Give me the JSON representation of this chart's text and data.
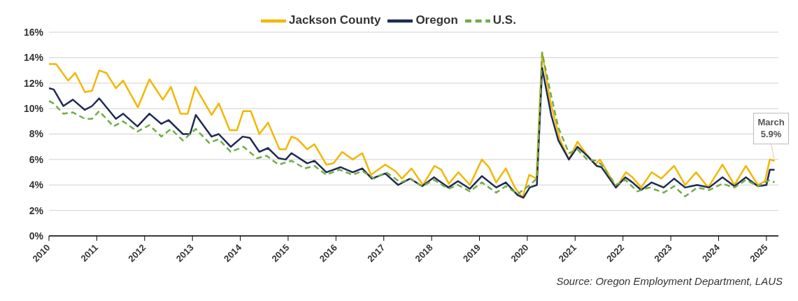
{
  "chart_data": {
    "type": "line",
    "xlim": [
      2010,
      2025.25
    ],
    "xticks": [
      2010,
      2011,
      2012,
      2013,
      2014,
      2015,
      2016,
      2017,
      2018,
      2019,
      2020,
      2021,
      2022,
      2023,
      2024,
      2025
    ],
    "ylim": [
      0,
      16
    ],
    "yticks": [
      {
        "value": 0,
        "label": "0%"
      },
      {
        "value": 2,
        "label": "2%"
      },
      {
        "value": 4,
        "label": "4%"
      },
      {
        "value": 6,
        "label": "6%"
      },
      {
        "value": 8,
        "label": "8%"
      },
      {
        "value": 10,
        "label": "10%"
      },
      {
        "value": 12,
        "label": "12%"
      },
      {
        "value": 14,
        "label": "14%"
      },
      {
        "value": 16,
        "label": "16%"
      }
    ],
    "grid": "y",
    "legend": "top",
    "marker": "none",
    "series": [
      {
        "name": "Jackson County",
        "color": "#f2b705",
        "line_style": "solid",
        "x": [
          2010,
          2010.15,
          2010.4,
          2010.55,
          2010.75,
          2010.9,
          2011.05,
          2011.2,
          2011.4,
          2011.55,
          2011.86,
          2012.1,
          2012.38,
          2012.55,
          2012.75,
          2012.9,
          2013.06,
          2013.4,
          2013.55,
          2013.78,
          2013.93,
          2014.06,
          2014.22,
          2014.4,
          2014.58,
          2014.82,
          2014.95,
          2015.07,
          2015.2,
          2015.4,
          2015.55,
          2015.8,
          2015.95,
          2016.13,
          2016.35,
          2016.55,
          2016.73,
          2017.03,
          2017.24,
          2017.38,
          2017.58,
          2017.82,
          2018.06,
          2018.2,
          2018.36,
          2018.56,
          2018.8,
          2019.05,
          2019.2,
          2019.35,
          2019.55,
          2019.74,
          2019.9,
          2020.04,
          2020.19,
          2020.31,
          2020.49,
          2020.68,
          2020.87,
          2021.05,
          2021.22,
          2021.42,
          2021.52,
          2021.86,
          2022.06,
          2022.2,
          2022.38,
          2022.6,
          2022.8,
          2023.07,
          2023.3,
          2023.53,
          2023.78,
          2024.08,
          2024.33,
          2024.57,
          2024.82,
          2024.97,
          2025.07,
          2025.17
        ],
        "values": [
          13.5,
          13.5,
          12.2,
          12.8,
          11.3,
          11.4,
          13.0,
          12.8,
          11.6,
          12.2,
          10.1,
          12.3,
          10.7,
          11.7,
          9.6,
          9.6,
          11.7,
          9.5,
          10.4,
          8.3,
          8.3,
          9.8,
          9.8,
          8.0,
          8.9,
          6.8,
          6.8,
          7.8,
          7.6,
          6.8,
          7.2,
          5.6,
          5.7,
          6.6,
          6.0,
          6.5,
          4.8,
          5.6,
          5.1,
          4.5,
          5.3,
          4.0,
          5.5,
          5.2,
          4.1,
          5.0,
          4.0,
          6.0,
          5.4,
          4.2,
          5.3,
          3.8,
          3.0,
          4.8,
          4.5,
          14.4,
          10.4,
          7.6,
          6.0,
          7.4,
          6.5,
          5.6,
          6.0,
          3.8,
          5.0,
          4.6,
          3.8,
          5.0,
          4.5,
          5.5,
          4.0,
          5.0,
          3.8,
          5.6,
          4.0,
          5.5,
          4.0,
          4.3,
          6.0,
          5.9
        ]
      },
      {
        "name": "Oregon",
        "color": "#1f2a55",
        "line_style": "solid",
        "x": [
          2010,
          2010.1,
          2010.3,
          2010.5,
          2010.75,
          2010.9,
          2011.05,
          2011.4,
          2011.55,
          2011.85,
          2012.1,
          2012.35,
          2012.5,
          2012.8,
          2012.95,
          2013.07,
          2013.4,
          2013.55,
          2013.8,
          2014.05,
          2014.2,
          2014.4,
          2014.58,
          2014.8,
          2014.95,
          2015.07,
          2015.4,
          2015.55,
          2015.8,
          2016.1,
          2016.35,
          2016.55,
          2016.75,
          2017.03,
          2017.3,
          2017.55,
          2017.8,
          2018.05,
          2018.35,
          2018.55,
          2018.8,
          2019.05,
          2019.35,
          2019.55,
          2019.8,
          2019.92,
          2020.05,
          2020.2,
          2020.31,
          2020.5,
          2020.65,
          2020.87,
          2021.05,
          2021.25,
          2021.45,
          2021.55,
          2021.85,
          2022.05,
          2022.2,
          2022.38,
          2022.6,
          2022.85,
          2023.07,
          2023.3,
          2023.55,
          2023.8,
          2024.08,
          2024.33,
          2024.57,
          2024.82,
          2025,
          2025.07,
          2025.17
        ],
        "values": [
          11.6,
          11.5,
          10.2,
          10.7,
          9.9,
          10.2,
          10.8,
          9.2,
          9.6,
          8.6,
          9.6,
          8.8,
          9.1,
          8.0,
          8.0,
          9.5,
          7.8,
          8.0,
          7.0,
          7.8,
          7.7,
          6.6,
          6.9,
          6.1,
          6.0,
          6.5,
          5.7,
          5.9,
          5.0,
          5.4,
          5.0,
          5.3,
          4.5,
          4.9,
          4.0,
          4.5,
          3.9,
          4.6,
          3.8,
          4.3,
          3.7,
          4.7,
          3.8,
          4.2,
          3.2,
          3.0,
          3.8,
          4.0,
          13.2,
          9.5,
          7.5,
          6.0,
          7.0,
          6.3,
          5.5,
          5.4,
          3.8,
          4.6,
          4.2,
          3.6,
          4.2,
          3.8,
          4.5,
          3.8,
          4.0,
          3.8,
          4.6,
          3.9,
          4.6,
          3.9,
          4.0,
          5.2,
          5.2
        ]
      },
      {
        "name": "U.S.",
        "color": "#70ad47",
        "line_style": "dashed",
        "x": [
          2010,
          2010.1,
          2010.3,
          2010.5,
          2010.75,
          2010.9,
          2011.05,
          2011.35,
          2011.55,
          2011.85,
          2012.1,
          2012.35,
          2012.55,
          2012.8,
          2013.07,
          2013.35,
          2013.55,
          2013.8,
          2014.07,
          2014.35,
          2014.55,
          2014.8,
          2015.07,
          2015.35,
          2015.55,
          2015.8,
          2016.07,
          2016.35,
          2016.55,
          2016.8,
          2017.05,
          2017.35,
          2017.55,
          2017.8,
          2018.05,
          2018.35,
          2018.55,
          2018.8,
          2019.05,
          2019.35,
          2019.55,
          2019.8,
          2020.05,
          2020.2,
          2020.31,
          2020.5,
          2020.65,
          2020.87,
          2021.05,
          2021.25,
          2021.45,
          2021.55,
          2021.85,
          2022.05,
          2022.3,
          2022.55,
          2022.85,
          2023.07,
          2023.3,
          2023.55,
          2023.8,
          2024.08,
          2024.33,
          2024.57,
          2024.82,
          2025.07,
          2025.17
        ],
        "values": [
          10.6,
          10.4,
          9.6,
          9.7,
          9.2,
          9.2,
          9.8,
          8.6,
          9.0,
          8.2,
          8.7,
          7.8,
          8.4,
          7.5,
          8.4,
          7.3,
          7.6,
          6.6,
          7.0,
          6.1,
          6.3,
          5.6,
          5.9,
          5.3,
          5.5,
          4.8,
          5.2,
          4.8,
          5.1,
          4.5,
          5.0,
          4.2,
          4.5,
          3.9,
          4.4,
          3.7,
          4.0,
          3.5,
          4.2,
          3.4,
          3.9,
          3.3,
          4.0,
          4.5,
          14.4,
          11.0,
          8.5,
          6.5,
          6.8,
          6.0,
          5.9,
          5.6,
          4.0,
          4.4,
          3.5,
          3.8,
          3.4,
          3.9,
          3.1,
          3.8,
          3.6,
          4.1,
          3.8,
          4.4,
          3.9,
          4.4,
          4.2
        ]
      }
    ],
    "annotations": [
      {
        "text": "March\n5.9%",
        "x": 2025.17,
        "y": 5.9
      },
      "Source: Oregon Employment Department, LAUS"
    ]
  }
}
